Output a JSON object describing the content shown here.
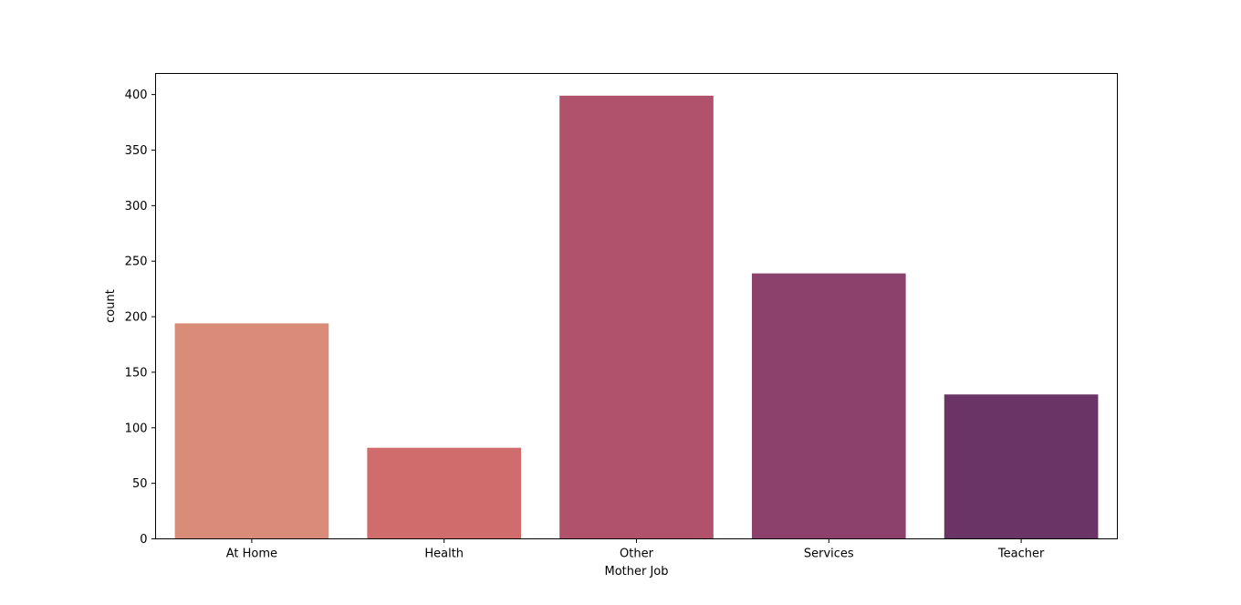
{
  "chart_data": {
    "type": "bar",
    "title": "",
    "xlabel": "Mother Job",
    "ylabel": "count",
    "categories": [
      "At Home",
      "Health",
      "Other",
      "Services",
      "Teacher"
    ],
    "values": [
      194,
      82,
      399,
      239,
      130
    ],
    "colors": [
      "#d98d79",
      "#d06c6b",
      "#b1526c",
      "#8c416c",
      "#6a3466"
    ],
    "ylim": [
      0,
      419
    ],
    "yticks": [
      0,
      50,
      100,
      150,
      200,
      250,
      300,
      350,
      400
    ],
    "grid": false,
    "legend": "none"
  }
}
